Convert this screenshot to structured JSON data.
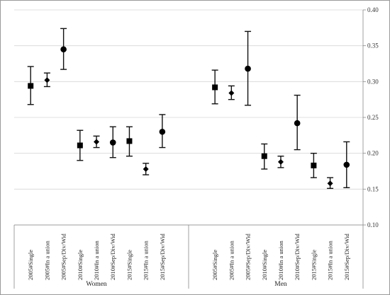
{
  "chart_data": {
    "type": "scatter",
    "title": "",
    "xlabel": "",
    "ylabel": "",
    "ylim": [
      0.1,
      0.4
    ],
    "yticks": [
      "0.10",
      "0.15",
      "0.20",
      "0.25",
      "0.30",
      "0.35",
      "0.40"
    ],
    "ytick_values": [
      0.1,
      0.15,
      0.2,
      0.25,
      0.3,
      0.35,
      0.4
    ],
    "grid": true,
    "y_axis_side": "right",
    "legend": "none",
    "groups": [
      {
        "name": "Women",
        "points": [
          {
            "category": "2005#Single",
            "value": 0.294,
            "lower": 0.268,
            "upper": 0.321,
            "marker": "square"
          },
          {
            "category": "2005#In a union",
            "value": 0.302,
            "lower": 0.293,
            "upper": 0.312,
            "marker": "diamond"
          },
          {
            "category": "2005#Sep/Div/Wid",
            "value": 0.345,
            "lower": 0.317,
            "upper": 0.374,
            "marker": "circle"
          },
          {
            "category": "2010#Single",
            "value": 0.211,
            "lower": 0.19,
            "upper": 0.232,
            "marker": "square"
          },
          {
            "category": "2010#In a union",
            "value": 0.216,
            "lower": 0.208,
            "upper": 0.224,
            "marker": "diamond"
          },
          {
            "category": "2010#Sep/Div/Wid",
            "value": 0.215,
            "lower": 0.194,
            "upper": 0.237,
            "marker": "circle"
          },
          {
            "category": "2015#Single",
            "value": 0.217,
            "lower": 0.196,
            "upper": 0.237,
            "marker": "square"
          },
          {
            "category": "2015#In a union",
            "value": 0.178,
            "lower": 0.17,
            "upper": 0.186,
            "marker": "diamond"
          },
          {
            "category": "2015#Sep/Div/Wid",
            "value": 0.23,
            "lower": 0.208,
            "upper": 0.254,
            "marker": "circle"
          }
        ]
      },
      {
        "name": "Men",
        "points": [
          {
            "category": "2005#Single",
            "value": 0.292,
            "lower": 0.269,
            "upper": 0.316,
            "marker": "square"
          },
          {
            "category": "2005#In a union",
            "value": 0.284,
            "lower": 0.275,
            "upper": 0.294,
            "marker": "diamond"
          },
          {
            "category": "2005#Sep/Div/Wid",
            "value": 0.318,
            "lower": 0.267,
            "upper": 0.37,
            "marker": "circle"
          },
          {
            "category": "2010#Single",
            "value": 0.196,
            "lower": 0.178,
            "upper": 0.213,
            "marker": "square"
          },
          {
            "category": "2010#In a union",
            "value": 0.188,
            "lower": 0.18,
            "upper": 0.196,
            "marker": "diamond"
          },
          {
            "category": "2010#Sep/Div/Wid",
            "value": 0.242,
            "lower": 0.205,
            "upper": 0.281,
            "marker": "circle"
          },
          {
            "category": "2015#Single",
            "value": 0.183,
            "lower": 0.166,
            "upper": 0.2,
            "marker": "square"
          },
          {
            "category": "2015#In a union",
            "value": 0.158,
            "lower": 0.151,
            "upper": 0.166,
            "marker": "diamond"
          },
          {
            "category": "2015#Sep/Div/Wid",
            "value": 0.184,
            "lower": 0.152,
            "upper": 0.216,
            "marker": "circle"
          }
        ]
      }
    ]
  }
}
